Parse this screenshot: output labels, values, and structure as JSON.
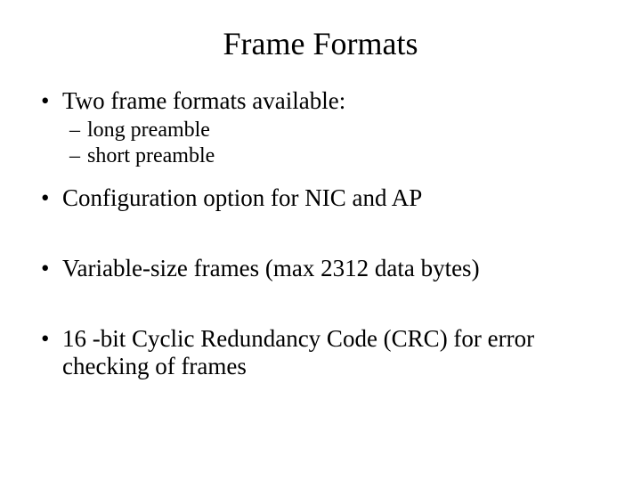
{
  "title": "Frame Formats",
  "bullets": [
    {
      "text": "Two frame formats available:",
      "subs": [
        "long preamble",
        "short preamble"
      ]
    },
    {
      "text": "Configuration option for NIC and AP"
    },
    {
      "text": "Variable-size frames (max 2312 data bytes)"
    },
    {
      "text": "16 -bit Cyclic Redundancy Code (CRC) for error checking of frames"
    }
  ]
}
